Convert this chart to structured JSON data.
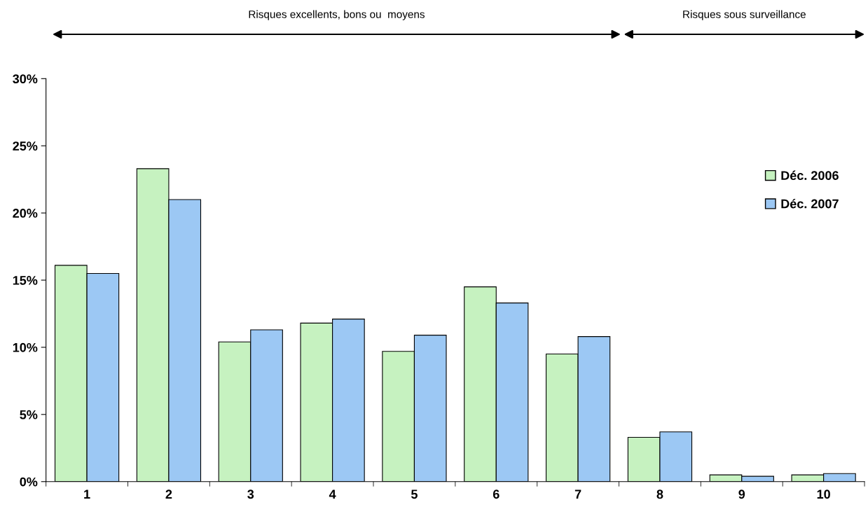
{
  "chart_data": {
    "type": "bar",
    "categories": [
      "1",
      "2",
      "3",
      "4",
      "5",
      "6",
      "7",
      "8",
      "9",
      "10"
    ],
    "series": [
      {
        "name": "Déc. 2006",
        "color": "#c6f2c0",
        "values": [
          16.1,
          23.3,
          10.4,
          11.8,
          9.7,
          14.5,
          9.5,
          3.3,
          0.5,
          0.5
        ]
      },
      {
        "name": "Déc. 2007",
        "color": "#9cc8f4",
        "values": [
          15.5,
          21.0,
          11.3,
          12.1,
          10.9,
          13.3,
          10.8,
          3.7,
          0.4,
          0.6
        ]
      }
    ],
    "ylim": [
      0,
      30
    ],
    "yticks": [
      {
        "value": 0,
        "label": "0%"
      },
      {
        "value": 5,
        "label": "5%"
      },
      {
        "value": 10,
        "label": "10%"
      },
      {
        "value": 15,
        "label": "15%"
      },
      {
        "value": 20,
        "label": "20%"
      },
      {
        "value": 25,
        "label": "25%"
      },
      {
        "value": 30,
        "label": "30%"
      }
    ],
    "annotations": [
      "Risques excellents, bons ou  moyens",
      "Risques sous surveillance"
    ],
    "grid": false,
    "legend": "top right"
  }
}
